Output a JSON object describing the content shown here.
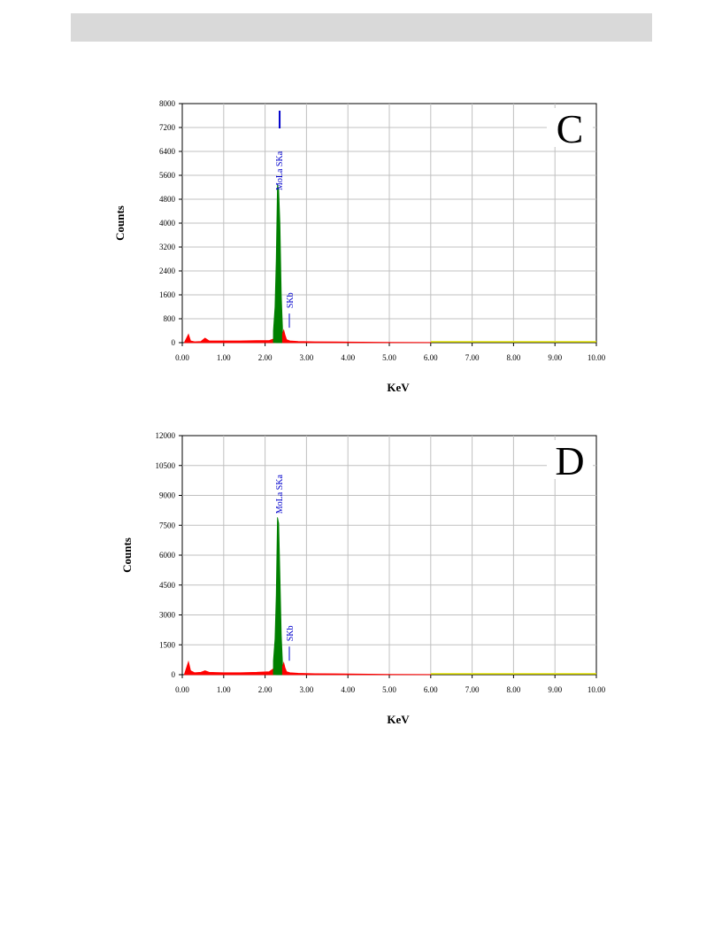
{
  "chart_data": [
    {
      "type": "area",
      "panel_letter": "C",
      "xlabel": "KeV",
      "ylabel": "Counts",
      "xlim": [
        0,
        10
      ],
      "ylim": [
        0,
        8000
      ],
      "x_ticks": [
        "0.00",
        "1.00",
        "2.00",
        "3.00",
        "4.00",
        "5.00",
        "6.00",
        "7.00",
        "8.00",
        "9.00",
        "10.00"
      ],
      "y_ticks": [
        "0",
        "800",
        "1600",
        "2400",
        "3200",
        "4000",
        "4800",
        "5600",
        "6400",
        "7200",
        "8000"
      ],
      "grid": true,
      "series": [
        {
          "color": "#ff0000",
          "x": [
            0.05,
            0.15,
            0.2,
            0.3,
            0.45,
            0.55,
            0.65,
            0.8,
            1.0,
            1.4,
            1.8,
            2.1,
            2.2,
            2.25
          ],
          "y": [
            0,
            280,
            60,
            30,
            40,
            150,
            60,
            60,
            60,
            60,
            70,
            70,
            120,
            300
          ]
        },
        {
          "color": "#008000",
          "x": [
            2.2,
            2.24,
            2.27,
            2.3,
            2.33,
            2.36,
            2.39,
            2.42
          ],
          "y": [
            400,
            1200,
            2800,
            5300,
            5100,
            4000,
            1600,
            500
          ]
        },
        {
          "color": "#ff0000",
          "x": [
            2.42,
            2.45,
            2.48,
            2.52,
            2.6,
            2.8,
            3.2,
            4.0,
            5.0,
            6.0
          ],
          "y": [
            300,
            420,
            260,
            100,
            60,
            40,
            30,
            20,
            10,
            5
          ]
        },
        {
          "color": "#cccc00",
          "x": [
            6.0,
            10.0
          ],
          "y": [
            0,
            0
          ]
        }
      ],
      "annotations": [
        {
          "label": "MoLa SKa",
          "x": 2.33
        },
        {
          "label": "SKb",
          "x": 2.5
        }
      ]
    },
    {
      "type": "area",
      "panel_letter": "D",
      "xlabel": "KeV",
      "ylabel": "Counts",
      "xlim": [
        0,
        10
      ],
      "ylim": [
        0,
        12000
      ],
      "x_ticks": [
        "0.00",
        "1.00",
        "2.00",
        "3.00",
        "4.00",
        "5.00",
        "6.00",
        "7.00",
        "8.00",
        "9.00",
        "10.00"
      ],
      "y_ticks": [
        "0",
        "1500",
        "3000",
        "4500",
        "6000",
        "7500",
        "9000",
        "10500",
        "12000"
      ],
      "grid": true,
      "series": [
        {
          "color": "#ff0000",
          "x": [
            0.05,
            0.15,
            0.2,
            0.3,
            0.45,
            0.55,
            0.65,
            0.8,
            1.0,
            1.4,
            1.8,
            2.1,
            2.2,
            2.25
          ],
          "y": [
            0,
            650,
            200,
            100,
            120,
            200,
            120,
            110,
            100,
            100,
            120,
            150,
            300,
            600
          ]
        },
        {
          "color": "#008000",
          "x": [
            2.2,
            2.24,
            2.27,
            2.3,
            2.33,
            2.36,
            2.39,
            2.42
          ],
          "y": [
            700,
            1800,
            4000,
            7900,
            7600,
            5000,
            2000,
            600
          ]
        },
        {
          "color": "#ff0000",
          "x": [
            2.42,
            2.45,
            2.48,
            2.52,
            2.6,
            2.8,
            3.2,
            4.0,
            5.0,
            6.0
          ],
          "y": [
            400,
            600,
            350,
            150,
            100,
            70,
            50,
            40,
            20,
            10
          ]
        },
        {
          "color": "#cccc00",
          "x": [
            6.0,
            10.0
          ],
          "y": [
            0,
            0
          ]
        }
      ],
      "annotations": [
        {
          "label": "MoLa SKa",
          "x": 2.33
        },
        {
          "label": "SKb",
          "x": 2.5
        }
      ]
    }
  ]
}
